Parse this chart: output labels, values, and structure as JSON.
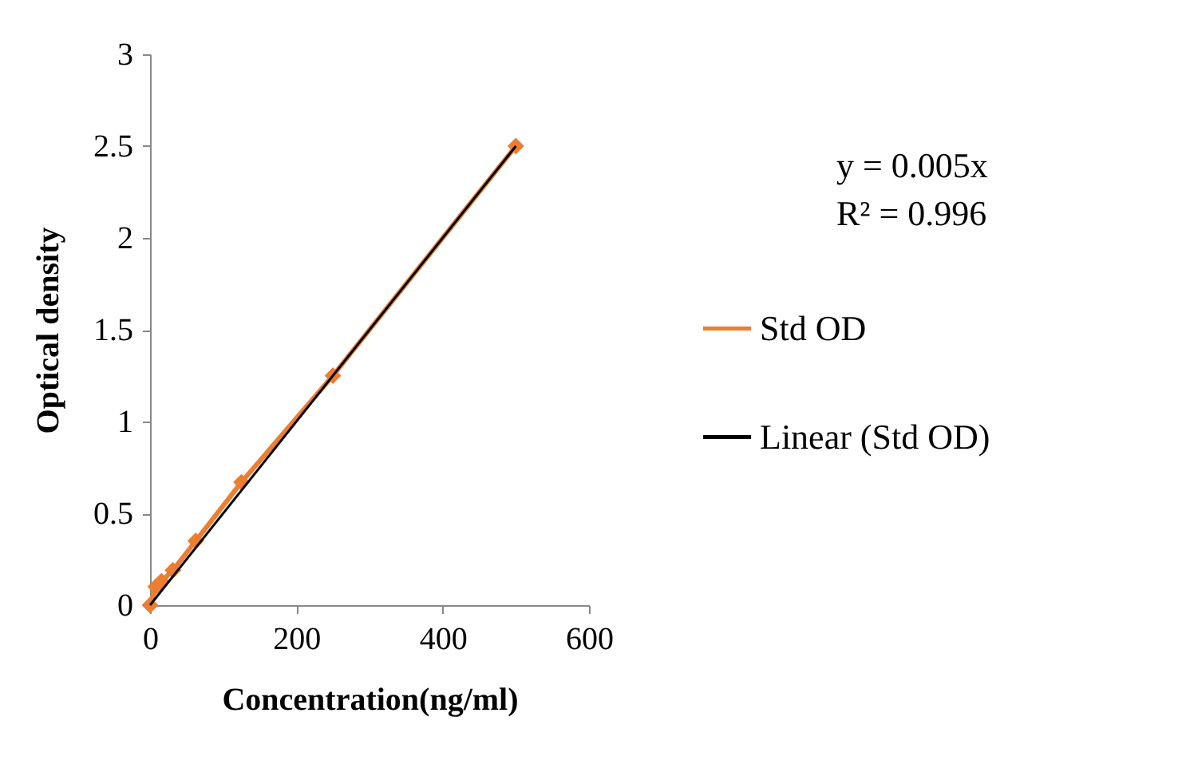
{
  "chart_data": {
    "type": "line",
    "xlabel": "Concentration(ng/ml)",
    "ylabel": "Optical density",
    "xlim": [
      0,
      600
    ],
    "xticks": [
      0,
      200,
      400,
      600
    ],
    "ylim": [
      0,
      3
    ],
    "yticks": [
      0,
      0.5,
      1,
      1.5,
      2,
      2.5,
      3
    ],
    "grid": false,
    "legend": "right",
    "annotations": [
      "y = 0.005x",
      "R² = 0.996"
    ],
    "series": [
      {
        "name": "Std OD",
        "color": "#ed7d31",
        "marker": "diamond",
        "x": [
          0,
          7.8,
          15.6,
          31.25,
          62.5,
          125,
          250,
          500
        ],
        "values": [
          0,
          0.1,
          0.13,
          0.19,
          0.35,
          0.67,
          1.25,
          2.5
        ]
      },
      {
        "name": "Linear (Std OD)",
        "color": "#000000",
        "marker": "none",
        "x": [
          0,
          500
        ],
        "values": [
          0,
          2.5
        ]
      }
    ]
  }
}
